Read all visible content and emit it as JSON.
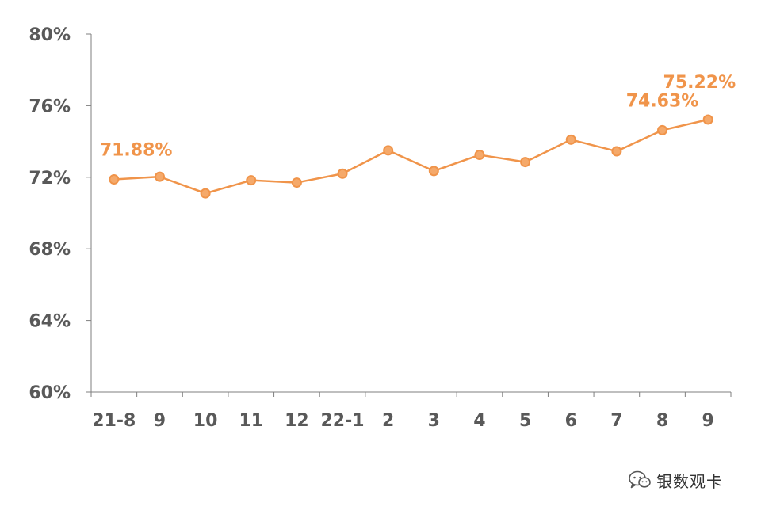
{
  "chart_data": {
    "type": "line",
    "categories": [
      "21-8",
      "9",
      "10",
      "11",
      "12",
      "22-1",
      "2",
      "3",
      "4",
      "5",
      "6",
      "7",
      "8",
      "9"
    ],
    "series": [
      {
        "values": [
          71.88,
          72.03,
          71.1,
          71.83,
          71.7,
          72.2,
          73.5,
          72.35,
          73.25,
          72.85,
          74.1,
          73.45,
          74.63,
          75.22
        ]
      }
    ],
    "ylim": [
      60,
      80
    ],
    "yticks": [
      60,
      64,
      68,
      72,
      76,
      80
    ],
    "y_tick_labels": [
      "60%",
      "64%",
      "68%",
      "72%",
      "76%",
      "80%"
    ],
    "data_labels": [
      {
        "index": 0,
        "text": "71.88%"
      },
      {
        "index": 12,
        "text": "74.63%"
      },
      {
        "index": 13,
        "text": "75.22%"
      }
    ],
    "grid": false,
    "legend": "none",
    "colors": {
      "line": "#F0944A",
      "marker_fill": "#F5A96A",
      "axis": "#7F7F7F",
      "tick_text": "#595959"
    }
  },
  "watermark": {
    "text": "银数观卡",
    "icon": "wechat-icon"
  }
}
